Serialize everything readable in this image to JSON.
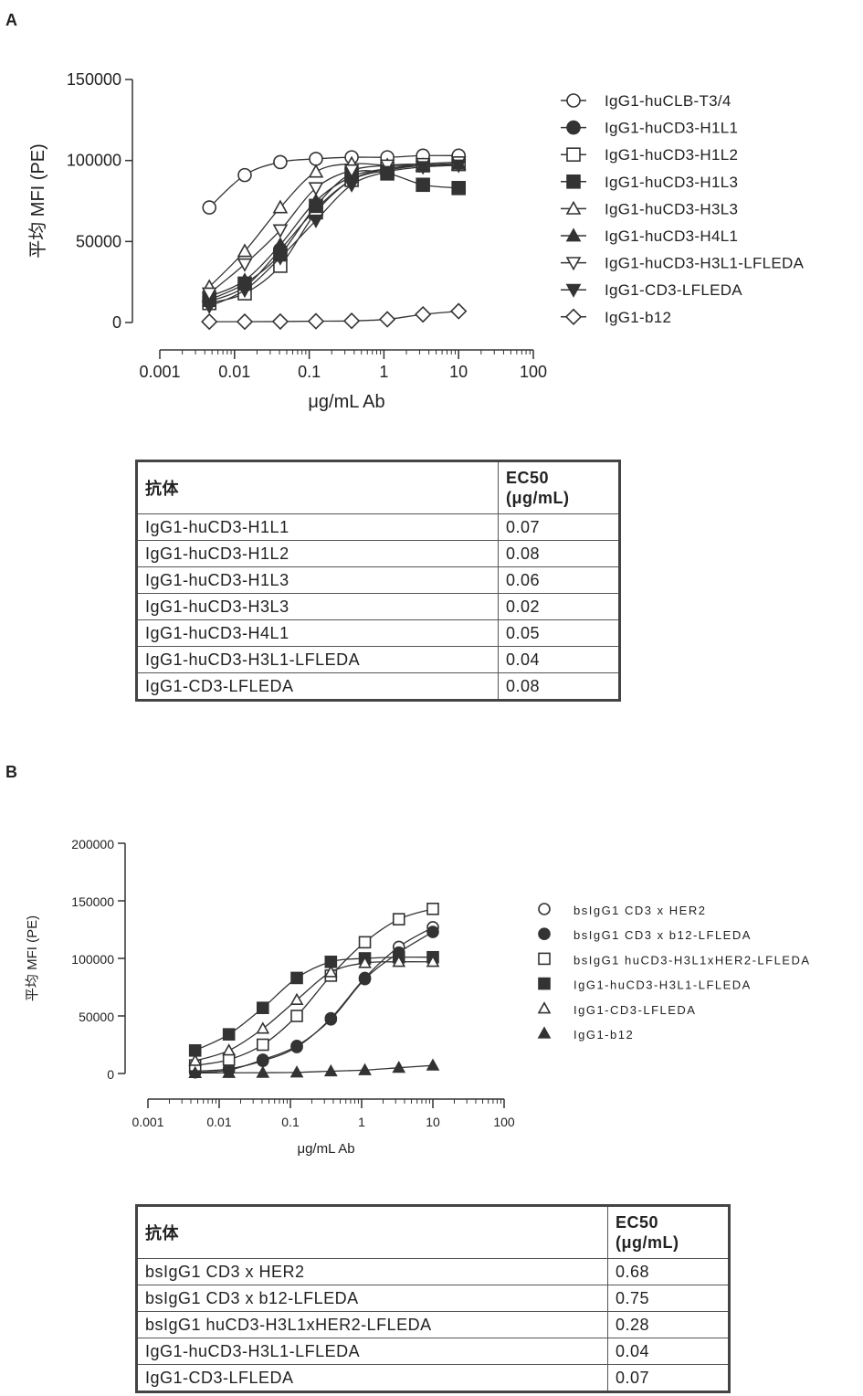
{
  "panels": [
    {
      "letter": "A",
      "chart_data": {
        "type": "scatter",
        "ylabel": "平均 MFI (PE)",
        "xlabel": "μg/mL Ab",
        "xscale": "log",
        "xlim": [
          0.001,
          100
        ],
        "ylim": [
          0,
          150000
        ],
        "xticks": [
          "0.001",
          "0.01",
          "0.1",
          "1",
          "10",
          "100"
        ],
        "yticks": [
          "0",
          "50000",
          "100000",
          "150000"
        ],
        "x": [
          0.0046,
          0.0137,
          0.041,
          0.123,
          0.37,
          1.11,
          3.33,
          10
        ],
        "legend_position": "right",
        "series": [
          {
            "name": "IgG1-huCLB-T3/4",
            "marker": "circle-open",
            "values": [
              71000,
              91000,
              99000,
              101000,
              102000,
              102000,
              103000,
              103000
            ]
          },
          {
            "name": "IgG1-huCD3-H1L1",
            "marker": "circle-filled",
            "values": [
              13000,
              22000,
              45000,
              70000,
              88000,
              94000,
              97000,
              98000
            ]
          },
          {
            "name": "IgG1-huCD3-H1L2",
            "marker": "square-open",
            "values": [
              12000,
              18000,
              35000,
              68000,
              88000,
              95000,
              97000,
              98000
            ]
          },
          {
            "name": "IgG1-huCD3-H1L3",
            "marker": "square-filled",
            "values": [
              14000,
              24000,
              42000,
              72000,
              92000,
              92000,
              85000,
              83000
            ]
          },
          {
            "name": "IgG1-huCD3-H3L3",
            "marker": "triangle-open",
            "values": [
              22000,
              44000,
              71000,
              93000,
              98000,
              97000,
              97000,
              97000
            ]
          },
          {
            "name": "IgG1-huCD3-H4L1",
            "marker": "triangle-filled",
            "values": [
              16000,
              26000,
              48000,
              75000,
              90000,
              95000,
              97000,
              98000
            ]
          },
          {
            "name": "IgG1-huCD3-H3L1-LFLEDA",
            "marker": "triangle-down-open",
            "values": [
              18000,
              36000,
              57000,
              83000,
              94000,
              97000,
              98000,
              99000
            ]
          },
          {
            "name": "IgG1-CD3-LFLEDA",
            "marker": "triangle-down-filled",
            "values": [
              10000,
              20000,
              40000,
              63000,
              85000,
              93000,
              96000,
              97000
            ]
          },
          {
            "name": "IgG1-b12",
            "marker": "diamond-open",
            "values": [
              500,
              500,
              600,
              800,
              1000,
              2000,
              5000,
              7000
            ]
          }
        ]
      },
      "table": {
        "col1": "抗体",
        "col2_line1": "EC50",
        "col2_line2": "(μg/mL)",
        "rows": [
          {
            "antibody": "IgG1-huCD3-H1L1",
            "ec50": "0.07"
          },
          {
            "antibody": "IgG1-huCD3-H1L2",
            "ec50": "0.08"
          },
          {
            "antibody": "IgG1-huCD3-H1L3",
            "ec50": "0.06"
          },
          {
            "antibody": "IgG1-huCD3-H3L3",
            "ec50": "0.02"
          },
          {
            "antibody": "IgG1-huCD3-H4L1",
            "ec50": "0.05"
          },
          {
            "antibody": "IgG1-huCD3-H3L1-LFLEDA",
            "ec50": "0.04"
          },
          {
            "antibody": "IgG1-CD3-LFLEDA",
            "ec50": "0.08"
          }
        ]
      }
    },
    {
      "letter": "B",
      "chart_data": {
        "type": "scatter",
        "ylabel": "平均 MFI (PE)",
        "xlabel": "μg/mL Ab",
        "xscale": "log",
        "xlim": [
          0.001,
          100
        ],
        "ylim": [
          0,
          200000
        ],
        "xticks": [
          "0.001",
          "0.01",
          "0.1",
          "1",
          "10",
          "100"
        ],
        "yticks": [
          "0",
          "50000",
          "100000",
          "150000",
          "200000"
        ],
        "x": [
          0.0046,
          0.0137,
          0.041,
          0.123,
          0.37,
          1.11,
          3.33,
          10
        ],
        "legend_position": "right",
        "series": [
          {
            "name": "bsIgG1 CD3 x HER2",
            "marker": "circle-open",
            "values": [
              2000,
              4000,
              11000,
              23000,
              48000,
              83000,
              110000,
              127000
            ]
          },
          {
            "name": "bsIgG1 CD3 x b12-LFLEDA",
            "marker": "circle-filled",
            "values": [
              1000,
              3000,
              12000,
              24000,
              47000,
              82000,
              105000,
              123000
            ]
          },
          {
            "name": "bsIgG1 huCD3-H3L1xHER2-LFLEDA",
            "marker": "square-open",
            "values": [
              7000,
              12000,
              25000,
              50000,
              85000,
              114000,
              134000,
              143000
            ]
          },
          {
            "name": "IgG1-huCD3-H3L1-LFLEDA",
            "marker": "square-filled",
            "values": [
              20000,
              34000,
              57000,
              83000,
              97000,
              100000,
              101000,
              101000
            ]
          },
          {
            "name": "IgG1-CD3-LFLEDA",
            "marker": "triangle-open",
            "values": [
              11000,
              20000,
              39000,
              64000,
              88000,
              96000,
              97000,
              97000
            ]
          },
          {
            "name": "IgG1-b12",
            "marker": "triangle-filled",
            "values": [
              500,
              600,
              700,
              1000,
              2000,
              3000,
              5000,
              7000
            ]
          }
        ]
      },
      "table": {
        "col1": "抗体",
        "col2_line1": "EC50",
        "col2_line2": "(μg/mL)",
        "rows": [
          {
            "antibody": "bsIgG1 CD3 x HER2",
            "ec50": "0.68"
          },
          {
            "antibody": "bsIgG1 CD3 x b12-LFLEDA",
            "ec50": "0.75"
          },
          {
            "antibody": "bsIgG1 huCD3-H3L1xHER2-LFLEDA",
            "ec50": "0.28"
          },
          {
            "antibody": "IgG1-huCD3-H3L1-LFLEDA",
            "ec50": "0.04"
          },
          {
            "antibody": "IgG1-CD3-LFLEDA",
            "ec50": "0.07"
          }
        ]
      }
    }
  ]
}
